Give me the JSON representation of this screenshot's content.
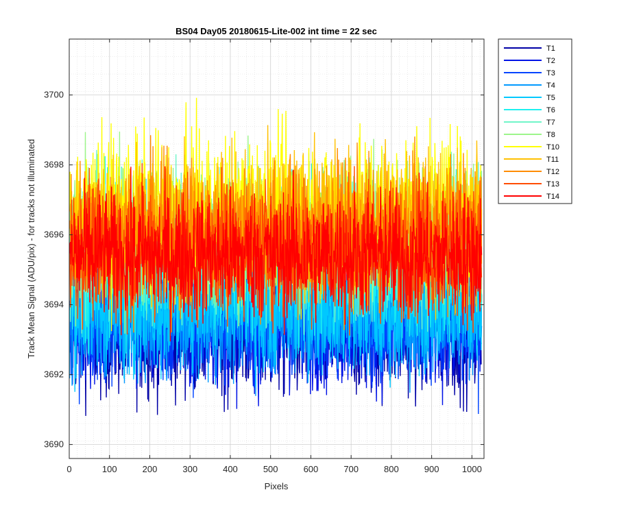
{
  "chart_data": {
    "type": "line",
    "title": "BS04 Day05 20180615-Lite-002 int time = 22 sec",
    "xlabel": "Pixels",
    "ylabel": "Track Mean Signal (ADU/pix) - for tracks not illuminated",
    "xlim": [
      0,
      1030
    ],
    "ylim": [
      3689.6,
      3701.6
    ],
    "xticks": [
      0,
      100,
      200,
      300,
      400,
      500,
      600,
      700,
      800,
      900,
      1000
    ],
    "yticks": [
      3690,
      3692,
      3694,
      3696,
      3698,
      3700
    ],
    "grid": true,
    "minor_grid": true,
    "legend_position": "outside-top-right",
    "x_count": 1024,
    "series": [
      {
        "name": "T1",
        "color": "#0000a6",
        "approx_mean": 3693.2,
        "approx_spread": 1.3
      },
      {
        "name": "T2",
        "color": "#0012e6",
        "approx_mean": 3693.4,
        "approx_spread": 1.3
      },
      {
        "name": "T3",
        "color": "#0044ff",
        "approx_mean": 3693.6,
        "approx_spread": 1.3
      },
      {
        "name": "T4",
        "color": "#0099ff",
        "approx_mean": 3693.8,
        "approx_spread": 1.3
      },
      {
        "name": "T5",
        "color": "#00c8ff",
        "approx_mean": 3694.0,
        "approx_spread": 1.3
      },
      {
        "name": "T6",
        "color": "#1ef0ef",
        "approx_mean": 3695.4,
        "approx_spread": 1.5
      },
      {
        "name": "T7",
        "color": "#6ff5c8",
        "approx_mean": 3695.8,
        "approx_spread": 1.5
      },
      {
        "name": "T8",
        "color": "#9cf58a",
        "approx_mean": 3696.0,
        "approx_spread": 1.5
      },
      {
        "name": "T10",
        "color": "#ffff00",
        "approx_mean": 3696.6,
        "approx_spread": 1.6
      },
      {
        "name": "T11",
        "color": "#ffc000",
        "approx_mean": 3696.3,
        "approx_spread": 1.5
      },
      {
        "name": "T12",
        "color": "#ff8c00",
        "approx_mean": 3696.0,
        "approx_spread": 1.5
      },
      {
        "name": "T13",
        "color": "#ff4c00",
        "approx_mean": 3695.6,
        "approx_spread": 1.4
      },
      {
        "name": "T14",
        "color": "#ff0000",
        "approx_mean": 3695.4,
        "approx_spread": 1.3
      }
    ]
  }
}
